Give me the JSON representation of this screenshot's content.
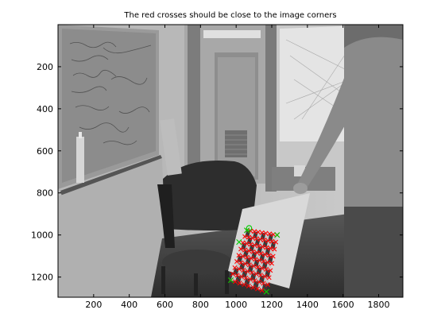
{
  "chart_data": {
    "type": "image",
    "title": "The red crosses should be close to the image corners",
    "xlabel": "",
    "ylabel": "",
    "xlim": [
      0,
      1936
    ],
    "ylim": [
      1296,
      0
    ],
    "xticks": [
      200,
      400,
      600,
      800,
      1000,
      1200,
      1400,
      1600,
      1800
    ],
    "yticks": [
      200,
      400,
      600,
      800,
      1000,
      1200
    ],
    "image_description_name": "grayscale-photo-office-checkerboard",
    "checkerboard": {
      "corners_data": [
        [
          1060,
          978
        ],
        [
          1230,
          1000
        ],
        [
          1170,
          1270
        ],
        [
          970,
          1215
        ]
      ],
      "rows": 8,
      "cols": 8,
      "cross_color": "#ff0000",
      "origin_marker_color": "#00cc00"
    }
  },
  "colors": {
    "frame": "#000000",
    "background": "#ffffff",
    "cross": "#ff0000",
    "green": "#00dd00"
  }
}
